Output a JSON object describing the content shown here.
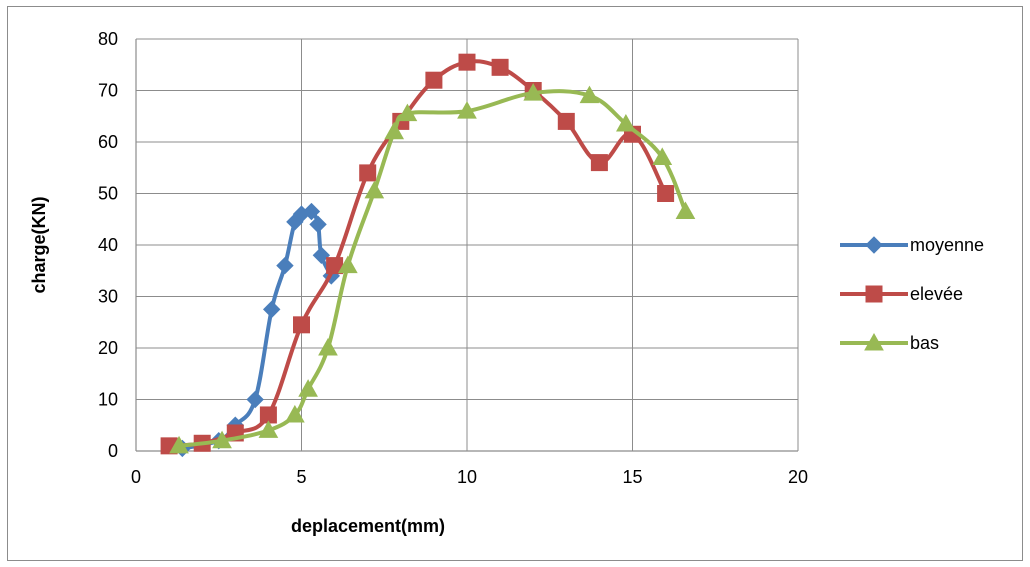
{
  "chart_data": {
    "type": "line",
    "title": "",
    "xlabel": "deplacement(mm)",
    "ylabel": "charge(KN)",
    "xlim": [
      0,
      20
    ],
    "ylim": [
      0,
      80
    ],
    "xticks": [
      0,
      5,
      10,
      15,
      20
    ],
    "yticks": [
      0,
      10,
      20,
      30,
      40,
      50,
      60,
      70,
      80
    ],
    "grid": true,
    "legend_position": "right",
    "series": [
      {
        "name": "moyenne",
        "color": "#4a7ebb",
        "marker": "diamond",
        "points": [
          [
            1.4,
            0.5
          ],
          [
            2.5,
            2.0
          ],
          [
            3.0,
            5.0
          ],
          [
            3.6,
            10.0
          ],
          [
            4.1,
            27.5
          ],
          [
            4.5,
            36.0
          ],
          [
            4.8,
            44.5
          ],
          [
            5.0,
            46.0
          ],
          [
            5.3,
            46.5
          ],
          [
            5.5,
            44.0
          ],
          [
            5.6,
            38.0
          ],
          [
            5.9,
            34.0
          ]
        ]
      },
      {
        "name": "elevée",
        "color": "#be4b48",
        "marker": "square",
        "points": [
          [
            1.0,
            1.0
          ],
          [
            2.0,
            1.5
          ],
          [
            3.0,
            3.5
          ],
          [
            4.0,
            7.0
          ],
          [
            5.0,
            24.5
          ],
          [
            6.0,
            36.0
          ],
          [
            7.0,
            54.0
          ],
          [
            8.0,
            64.0
          ],
          [
            9.0,
            72.0
          ],
          [
            10.0,
            75.5
          ],
          [
            11.0,
            74.5
          ],
          [
            12.0,
            70.0
          ],
          [
            13.0,
            64.0
          ],
          [
            14.0,
            56.0
          ],
          [
            15.0,
            61.5
          ],
          [
            16.0,
            50.0
          ]
        ]
      },
      {
        "name": "bas",
        "color": "#98b954",
        "marker": "triangle",
        "points": [
          [
            1.3,
            1.0
          ],
          [
            2.6,
            2.0
          ],
          [
            4.0,
            4.0
          ],
          [
            4.8,
            7.0
          ],
          [
            5.2,
            12.0
          ],
          [
            5.8,
            20.0
          ],
          [
            6.4,
            36.0
          ],
          [
            7.2,
            50.5
          ],
          [
            7.8,
            62.0
          ],
          [
            8.2,
            65.5
          ],
          [
            10.0,
            66.0
          ],
          [
            12.0,
            69.5
          ],
          [
            13.7,
            69.0
          ],
          [
            14.8,
            63.5
          ],
          [
            15.9,
            57.0
          ],
          [
            16.6,
            46.5
          ]
        ]
      }
    ]
  }
}
